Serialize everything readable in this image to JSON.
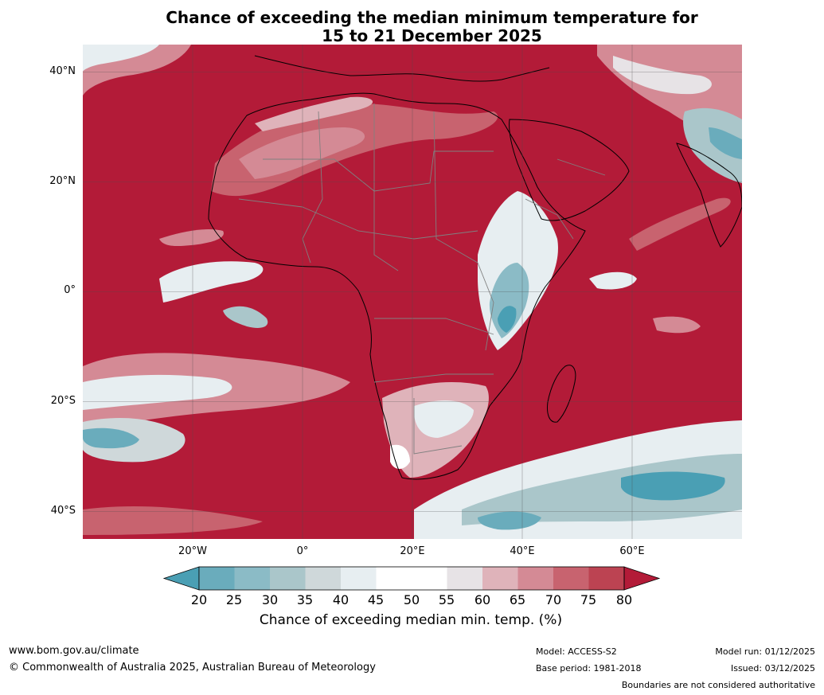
{
  "title": {
    "line1": "Chance of exceeding the median minimum temperature for",
    "line2": "15 to 21 December 2025"
  },
  "map": {
    "lat_labels": [
      "40°N",
      "20°N",
      "0°",
      "20°S",
      "40°S"
    ],
    "lon_labels": [
      "20°W",
      "0°",
      "20°E",
      "40°E",
      "60°E"
    ],
    "lon_range": [
      -40,
      80
    ],
    "lat_range": [
      -45,
      45
    ],
    "grid_lines_lon": [
      -20,
      0,
      20,
      40,
      60
    ],
    "grid_lines_lat": [
      40,
      20,
      0,
      -20,
      -40
    ]
  },
  "colorbar": {
    "ticks": [
      "20",
      "25",
      "30",
      "35",
      "40",
      "45",
      "50",
      "55",
      "60",
      "65",
      "70",
      "75",
      "80"
    ],
    "colors": [
      "#4a9fb4",
      "#6aacbc",
      "#8bbbc6",
      "#aac6ca",
      "#cfd8da",
      "#e7eef1",
      "#ffffff",
      "#ffffff",
      "#e7e3e6",
      "#dfb3ba",
      "#d48a95",
      "#c8636f",
      "#bc4352",
      "#b31b38"
    ],
    "title": "Chance of exceeding median min. temp. (%)"
  },
  "footer": {
    "website": "www.bom.gov.au/climate",
    "copyright": "© Commonwealth of Australia 2025, Australian Bureau of Meteorology",
    "model": "Model: ACCESS-S2",
    "base_period": "Base period: 1981-2018",
    "model_run": "Model run: 01/12/2025",
    "issued": "Issued: 03/12/2025",
    "disclaimer": "Boundaries are not considered authoritative"
  }
}
